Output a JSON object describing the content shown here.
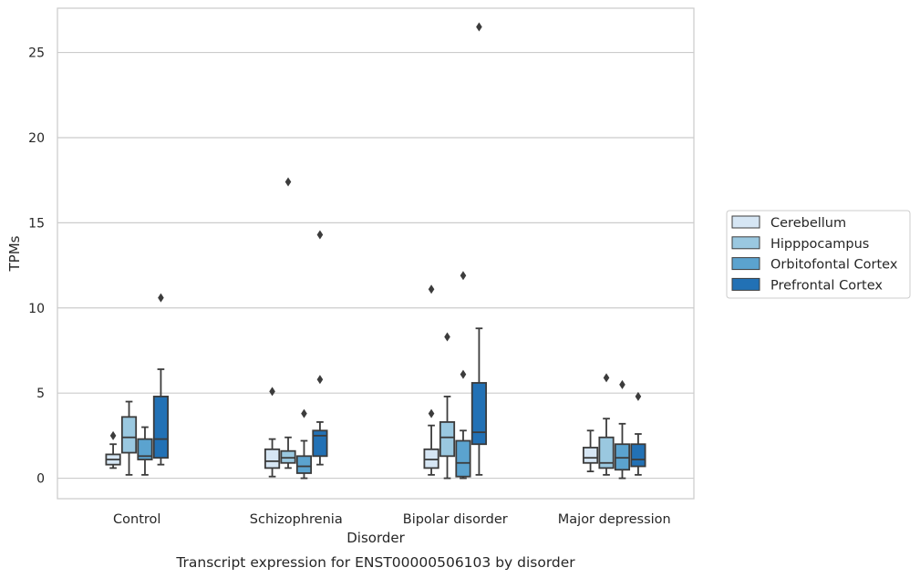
{
  "chart_data": {
    "type": "box",
    "xlabel": "Disorder",
    "ylabel": "TPMs",
    "caption": "Transcript expression for ENST00000506103 by disorder",
    "ylim": [
      -1.2,
      27.6
    ],
    "yticks": [
      0,
      5,
      10,
      15,
      20,
      25
    ],
    "grid": true,
    "legend_position": "right",
    "categories": [
      "Control",
      "Schizophrenia",
      "Bipolar disorder",
      "Major depression"
    ],
    "series": [
      {
        "name": "Cerebellum",
        "color": "#d6e6f4",
        "boxes": [
          {
            "whislo": 0.6,
            "q1": 0.8,
            "med": 1.1,
            "q3": 1.4,
            "whishi": 2.0,
            "fliers": [
              2.5
            ]
          },
          {
            "whislo": 0.1,
            "q1": 0.6,
            "med": 1.0,
            "q3": 1.7,
            "whishi": 2.3,
            "fliers": [
              5.1
            ]
          },
          {
            "whislo": 0.2,
            "q1": 0.6,
            "med": 1.1,
            "q3": 1.7,
            "whishi": 3.1,
            "fliers": [
              3.8,
              11.1
            ]
          },
          {
            "whislo": 0.4,
            "q1": 0.9,
            "med": 1.2,
            "q3": 1.8,
            "whishi": 2.8,
            "fliers": []
          }
        ]
      },
      {
        "name": "Hipppocampus",
        "color": "#9ac8e0",
        "boxes": [
          {
            "whislo": 0.2,
            "q1": 1.5,
            "med": 2.4,
            "q3": 3.6,
            "whishi": 4.5,
            "fliers": []
          },
          {
            "whislo": 0.6,
            "q1": 0.9,
            "med": 1.2,
            "q3": 1.6,
            "whishi": 2.4,
            "fliers": [
              17.4
            ]
          },
          {
            "whislo": 0.0,
            "q1": 1.3,
            "med": 2.4,
            "q3": 3.3,
            "whishi": 4.8,
            "fliers": [
              8.3
            ]
          },
          {
            "whislo": 0.2,
            "q1": 0.6,
            "med": 0.9,
            "q3": 2.4,
            "whishi": 3.5,
            "fliers": [
              5.9
            ]
          }
        ]
      },
      {
        "name": "Orbitofontal Cortex",
        "color": "#5ba3cf",
        "boxes": [
          {
            "whislo": 0.2,
            "q1": 1.1,
            "med": 1.3,
            "q3": 2.3,
            "whishi": 3.0,
            "fliers": []
          },
          {
            "whislo": 0.0,
            "q1": 0.3,
            "med": 0.7,
            "q3": 1.3,
            "whishi": 2.2,
            "fliers": [
              3.8
            ]
          },
          {
            "whislo": 0.0,
            "q1": 0.1,
            "med": 0.9,
            "q3": 2.2,
            "whishi": 2.8,
            "fliers": [
              6.1,
              11.9
            ]
          },
          {
            "whislo": 0.0,
            "q1": 0.5,
            "med": 1.2,
            "q3": 2.0,
            "whishi": 3.2,
            "fliers": [
              5.5
            ]
          }
        ]
      },
      {
        "name": "Prefrontal Cortex",
        "color": "#2271b5",
        "boxes": [
          {
            "whislo": 0.8,
            "q1": 1.2,
            "med": 2.3,
            "q3": 4.8,
            "whishi": 6.4,
            "fliers": [
              10.6
            ]
          },
          {
            "whislo": 0.8,
            "q1": 1.3,
            "med": 2.5,
            "q3": 2.8,
            "whishi": 3.3,
            "fliers": [
              5.8,
              14.3
            ]
          },
          {
            "whislo": 0.2,
            "q1": 2.0,
            "med": 2.7,
            "q3": 5.6,
            "whishi": 8.8,
            "fliers": [
              26.5
            ]
          },
          {
            "whislo": 0.2,
            "q1": 0.7,
            "med": 1.1,
            "q3": 2.0,
            "whishi": 2.6,
            "fliers": [
              4.8
            ]
          }
        ]
      }
    ]
  }
}
